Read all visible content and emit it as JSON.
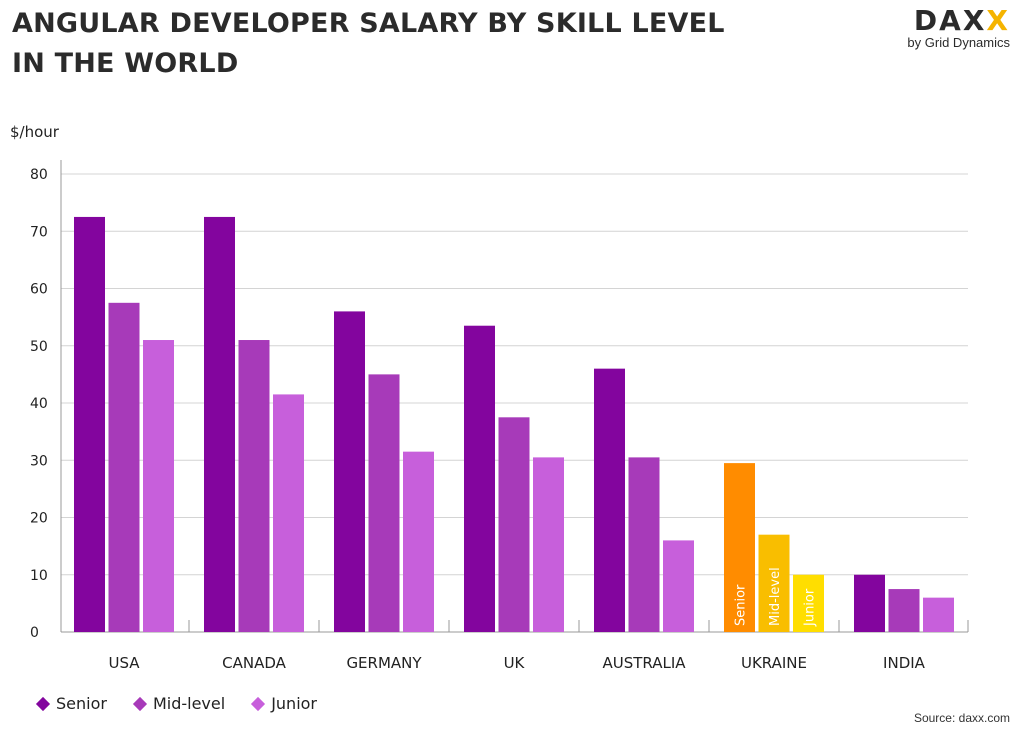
{
  "title_line1": "ANGULAR DEVELOPER SALARY BY SKILL LEVEL",
  "title_line2": "IN THE WORLD",
  "logo": {
    "word_left": "DA",
    "word_right": "X",
    "word_x": "X",
    "subtitle": "by Grid Dynamics"
  },
  "source": "Source: daxx.com",
  "chart_data": {
    "type": "bar",
    "ylabel": "$/hour",
    "ylim": [
      0,
      80
    ],
    "yticks": [
      0,
      10,
      20,
      30,
      40,
      50,
      60,
      70,
      80
    ],
    "grid": true,
    "legend_position": "bottom-left",
    "categories": [
      "USA",
      "CANADA",
      "GERMANY",
      "UK",
      "AUSTRALIA",
      "UKRAINE",
      "INDIA"
    ],
    "series": [
      {
        "name": "Senior",
        "color": "#83059e",
        "values": [
          72.5,
          72.5,
          56,
          53.5,
          46,
          29.5,
          10
        ]
      },
      {
        "name": "Mid-level",
        "color": "#a73ab9",
        "values": [
          57.5,
          51,
          45,
          37.5,
          30.5,
          17,
          7.5
        ]
      },
      {
        "name": "Junior",
        "color": "#c75fdb",
        "values": [
          51,
          41.5,
          31.5,
          30.5,
          16,
          10,
          6
        ]
      }
    ],
    "highlight": {
      "category": "UKRAINE",
      "colors": [
        "#ff8c00",
        "#f9be00",
        "#ffde00"
      ],
      "bar_labels": [
        "Senior",
        "Mid-level",
        "Junior"
      ]
    }
  }
}
